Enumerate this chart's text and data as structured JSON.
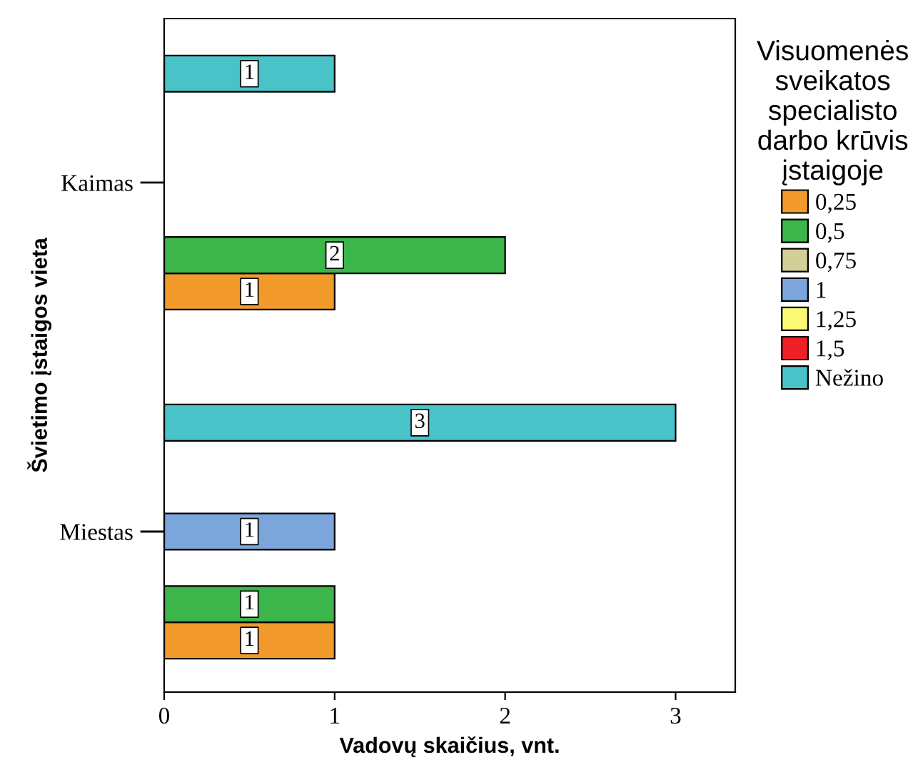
{
  "chart_data": {
    "type": "bar",
    "orientation": "horizontal",
    "categories": [
      "Kaimas",
      "Miestas"
    ],
    "xlabel": "Vadovų skaičius, vnt.",
    "ylabel": "Švietimo įstaigos vieta",
    "legend_title": "Visuomenės\nsveikatos\nspecialisto\ndarbo krūvis\nįstaigoje",
    "series": [
      {
        "name": "0,25",
        "color": "#f39a2c",
        "values": [
          1,
          1
        ]
      },
      {
        "name": "0,5",
        "color": "#3cb54a",
        "values": [
          2,
          1
        ]
      },
      {
        "name": "0,75",
        "color": "#d4cf98",
        "values": [
          null,
          null
        ]
      },
      {
        "name": "1",
        "color": "#7ca5db",
        "values": [
          null,
          1
        ]
      },
      {
        "name": "1,25",
        "color": "#fbf874",
        "values": [
          null,
          null
        ]
      },
      {
        "name": "1,5",
        "color": "#ee1f26",
        "values": [
          null,
          null
        ]
      },
      {
        "name": "Nežino",
        "color": "#49c3c8",
        "values": [
          1,
          3
        ]
      }
    ],
    "xlim": [
      0,
      3.35
    ],
    "xticks": [
      0,
      1,
      2,
      3
    ],
    "data_labels": true,
    "grid": false,
    "legend": "right"
  }
}
